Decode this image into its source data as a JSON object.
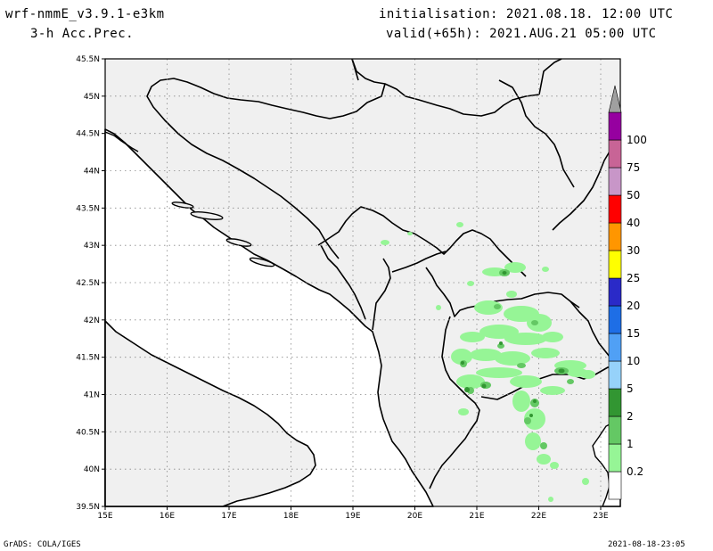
{
  "header": {
    "model": "wrf-nmmE_v3.9.1-e3km",
    "field": "3-h Acc.Prec.",
    "init": "initialisation: 2021.08.18. 12:00 UTC",
    "valid": "valid(+65h): 2021.AUG.21 05:00 UTC"
  },
  "footer": {
    "left": "GrADS: COLA/IGES",
    "right": "2021-08-18-23:05"
  },
  "map": {
    "lat_labels": [
      "45.5N",
      "45N",
      "44.5N",
      "44N",
      "43.5N",
      "43N",
      "42.5N",
      "42N",
      "41.5N",
      "41N",
      "40.5N",
      "40N",
      "39.5N"
    ],
    "lon_labels": [
      "15E",
      "16E",
      "17E",
      "18E",
      "19E",
      "20E",
      "21E",
      "22E",
      "23E"
    ],
    "land_color": "#f0f0f0",
    "grid": true
  },
  "colorbar": {
    "levels": [
      {
        "label": "0.2",
        "color": "#96f596"
      },
      {
        "label": "1",
        "color": "#64c864"
      },
      {
        "label": "2",
        "color": "#329632"
      },
      {
        "label": "5",
        "color": "#96d2fa"
      },
      {
        "label": "10",
        "color": "#50a0f5"
      },
      {
        "label": "15",
        "color": "#1e6ee6"
      },
      {
        "label": "20",
        "color": "#2a2ac8"
      },
      {
        "label": "25",
        "color": "#ffff00"
      },
      {
        "label": "30",
        "color": "#ff9600"
      },
      {
        "label": "40",
        "color": "#ff0000"
      },
      {
        "label": "50",
        "color": "#c896c8"
      },
      {
        "label": "75",
        "color": "#c86496"
      },
      {
        "label": "100",
        "color": "#9600a0"
      }
    ],
    "top_color": "#a0a0a0"
  }
}
